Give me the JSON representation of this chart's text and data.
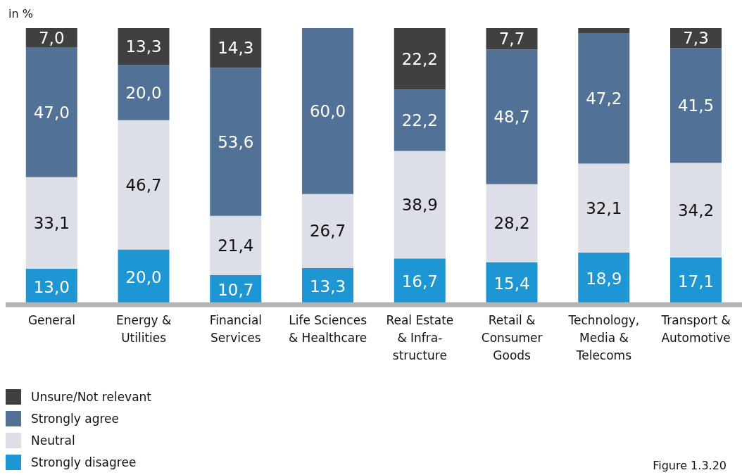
{
  "chart_data": {
    "type": "bar",
    "stacked": true,
    "ylabel": "in %",
    "categories": [
      "General",
      "Energy &\nUtilities",
      "Financial\nServices",
      "Life Sciences\n& Healthcare",
      "Real Estate\n& Infra-\nstructure",
      "Retail &\nConsumer\nGoods",
      "Technology,\nMedia &\nTelecoms",
      "Transport &\nAutomotive"
    ],
    "series": [
      {
        "name": "Strongly disagree",
        "color": "#1e96d4",
        "values": [
          13.0,
          20.0,
          10.7,
          13.3,
          16.7,
          15.4,
          18.9,
          17.1
        ],
        "value_labels": [
          "13,0",
          "20,0",
          "10,7",
          "13,3",
          "16,7",
          "15,4",
          "18,9",
          "17,1"
        ]
      },
      {
        "name": "Neutral",
        "color": "#dcdee8",
        "values": [
          33.1,
          46.7,
          21.4,
          26.7,
          38.9,
          28.2,
          32.1,
          34.2
        ],
        "value_labels": [
          "33,1",
          "46,7",
          "21,4",
          "26,7",
          "38,9",
          "28,2",
          "32,1",
          "34,2"
        ]
      },
      {
        "name": "Strongly agree",
        "color": "#527196",
        "values": [
          47.0,
          20.0,
          53.6,
          60.0,
          22.2,
          48.7,
          47.2,
          41.5
        ],
        "value_labels": [
          "47,0",
          "20,0",
          "53,6",
          "60,0",
          "22,2",
          "48,7",
          "47,2",
          "41,5"
        ]
      },
      {
        "name": "Unsure/Not relevant",
        "color": "#404040",
        "values": [
          7.0,
          13.3,
          14.3,
          null,
          22.2,
          7.7,
          1.8,
          7.3
        ],
        "value_labels": [
          "7,0",
          "13,3",
          "14,3",
          null,
          "22,2",
          "7,7",
          null,
          "7,3"
        ]
      }
    ],
    "ylim": [
      0,
      100
    ],
    "tick_labels": "x",
    "legend": "bottom left",
    "annotations": [
      "Figure 1.3.20"
    ]
  }
}
